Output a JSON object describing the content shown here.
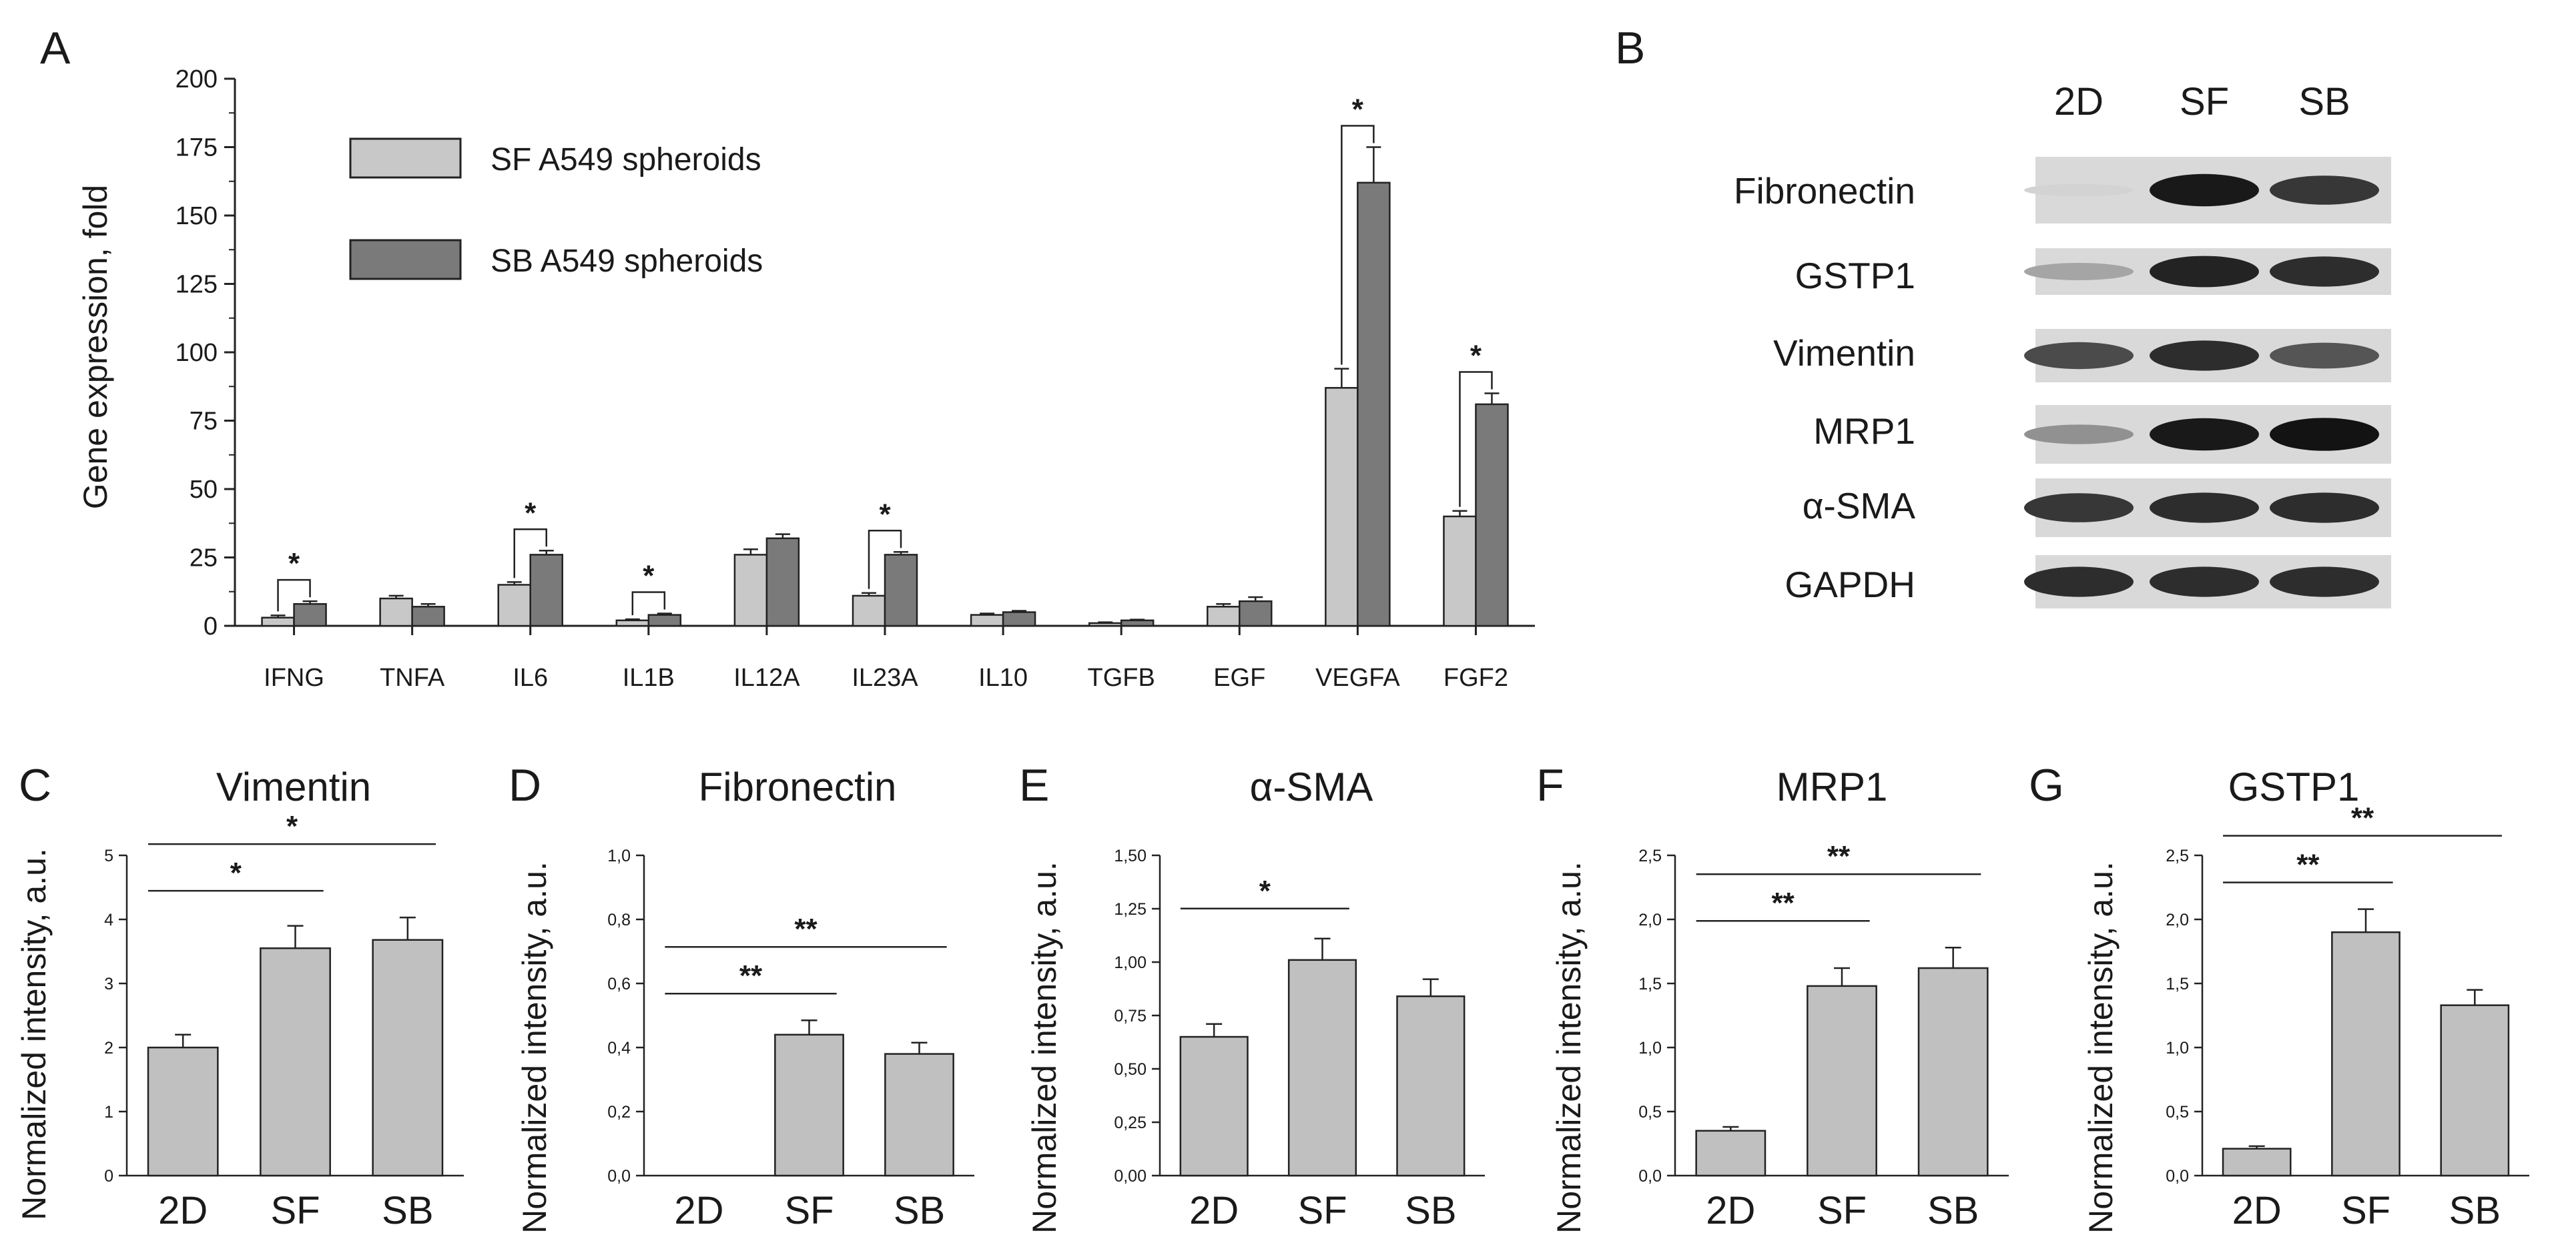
{
  "colors": {
    "sf": "#c8c8c8",
    "sb": "#7a7a7a",
    "bar": "#c0c0c0",
    "line": "#222222"
  },
  "panels": {
    "A": {
      "letter": "A"
    },
    "B": {
      "letter": "B"
    },
    "C": {
      "letter": "C"
    },
    "D": {
      "letter": "D"
    },
    "E": {
      "letter": "E"
    },
    "F": {
      "letter": "F"
    },
    "G": {
      "letter": "G"
    }
  },
  "western_blot": {
    "lanes": [
      "2D",
      "SF",
      "SB"
    ],
    "rows": [
      {
        "label": "Fibronectin",
        "intensities": [
          0.02,
          0.95,
          0.8
        ]
      },
      {
        "label": "GSTP1",
        "intensities": [
          0.25,
          0.9,
          0.85
        ]
      },
      {
        "label": "Vimentin",
        "intensities": [
          0.7,
          0.85,
          0.65
        ]
      },
      {
        "label": "MRP1",
        "intensities": [
          0.35,
          0.95,
          0.98
        ]
      },
      {
        "label": "α-SMA",
        "intensities": [
          0.8,
          0.85,
          0.85
        ]
      },
      {
        "label": "GAPDH",
        "intensities": [
          0.85,
          0.85,
          0.85
        ]
      }
    ]
  },
  "chart_data": [
    {
      "id": "A",
      "type": "bar",
      "title": "",
      "xlabel": "",
      "ylabel": "Gene expression, fold",
      "ylim": [
        0,
        200
      ],
      "yticks": [
        "0",
        "25",
        "50",
        "75",
        "100",
        "125",
        "150",
        "175",
        "200"
      ],
      "categories": [
        "IFNG",
        "TNFA",
        "IL6",
        "IL1B",
        "IL12A",
        "IL23A",
        "IL10",
        "TGFB",
        "EGF",
        "VEGFA",
        "FGF2"
      ],
      "series": [
        {
          "name": "SF A549 spheroids",
          "values": [
            3,
            10,
            15,
            2,
            26,
            11,
            4,
            1,
            7,
            87,
            40
          ],
          "errors": [
            0.8,
            1,
            1,
            0.4,
            2,
            1,
            0.5,
            0.3,
            1,
            7,
            2
          ]
        },
        {
          "name": "SB A549 spheroids",
          "values": [
            8,
            7,
            26,
            4,
            32,
            26,
            5,
            2,
            9,
            162,
            81
          ],
          "errors": [
            1,
            1,
            1.5,
            0.5,
            1.5,
            1,
            0.5,
            0.3,
            1.5,
            13,
            4
          ]
        }
      ],
      "significance": [
        {
          "category": "IFNG",
          "label": "*"
        },
        {
          "category": "IL6",
          "label": "*"
        },
        {
          "category": "IL1B",
          "label": "*"
        },
        {
          "category": "IL23A",
          "label": "*"
        },
        {
          "category": "VEGFA",
          "label": "*"
        },
        {
          "category": "FGF2",
          "label": "*"
        }
      ]
    },
    {
      "id": "C",
      "type": "bar",
      "title": "Vimentin",
      "xlabel": "",
      "ylabel": "Normalized intensity, a.u.",
      "ylim": [
        0,
        5
      ],
      "yticks": [
        "0",
        "1",
        "2",
        "3",
        "4",
        "5"
      ],
      "categories": [
        "2D",
        "SF",
        "SB"
      ],
      "values": [
        2.0,
        3.55,
        3.68
      ],
      "errors": [
        0.2,
        0.35,
        0.35
      ],
      "significance": [
        {
          "from": 0,
          "to": 1,
          "label": "*"
        },
        {
          "from": 0,
          "to": 2,
          "label": "*"
        }
      ]
    },
    {
      "id": "D",
      "type": "bar",
      "title": "Fibronectin",
      "xlabel": "",
      "ylabel": "Normalized intensity, a.u.",
      "ylim": [
        0,
        1.0
      ],
      "yticks": [
        "0,0",
        "0,2",
        "0,4",
        "0,6",
        "0,8",
        "1,0"
      ],
      "categories": [
        "2D",
        "SF",
        "SB"
      ],
      "values": [
        0,
        0.44,
        0.38
      ],
      "errors": [
        0,
        0.045,
        0.035
      ],
      "significance": [
        {
          "from": 0,
          "to": 1,
          "label": "**"
        },
        {
          "from": 0,
          "to": 2,
          "label": "**"
        }
      ]
    },
    {
      "id": "E",
      "type": "bar",
      "title": "α-SMA",
      "xlabel": "",
      "ylabel": "Normalized intensity, a.u.",
      "ylim": [
        0,
        1.5
      ],
      "yticks": [
        "0,00",
        "0,25",
        "0,50",
        "0,75",
        "1,00",
        "1,25",
        "1,50"
      ],
      "categories": [
        "2D",
        "SF",
        "SB"
      ],
      "values": [
        0.65,
        1.01,
        0.84
      ],
      "errors": [
        0.06,
        0.1,
        0.08
      ],
      "significance": [
        {
          "from": 0,
          "to": 1,
          "label": "*"
        }
      ]
    },
    {
      "id": "F",
      "type": "bar",
      "title": "MRP1",
      "xlabel": "",
      "ylabel": "Normalized intensity, a.u.",
      "ylim": [
        0,
        2.5
      ],
      "yticks": [
        "0,0",
        "0,5",
        "1,0",
        "1,5",
        "2,0",
        "2,5"
      ],
      "categories": [
        "2D",
        "SF",
        "SB"
      ],
      "values": [
        0.35,
        1.48,
        1.62
      ],
      "errors": [
        0.03,
        0.14,
        0.16
      ],
      "significance": [
        {
          "from": 0,
          "to": 1,
          "label": "**"
        },
        {
          "from": 0,
          "to": 2,
          "label": "**"
        }
      ]
    },
    {
      "id": "G",
      "type": "bar",
      "title": "GSTP1",
      "xlabel": "",
      "ylabel": "Normalized intensity, a.u.",
      "ylim": [
        0,
        2.5
      ],
      "yticks": [
        "0,0",
        "0,5",
        "1,0",
        "1,5",
        "2,0",
        "2,5"
      ],
      "categories": [
        "2D",
        "SF",
        "SB"
      ],
      "values": [
        0.21,
        1.9,
        1.33
      ],
      "errors": [
        0.02,
        0.18,
        0.12
      ],
      "significance": [
        {
          "from": 0,
          "to": 1,
          "label": "**"
        },
        {
          "from": 0,
          "to": 2,
          "label": "**"
        }
      ]
    }
  ]
}
